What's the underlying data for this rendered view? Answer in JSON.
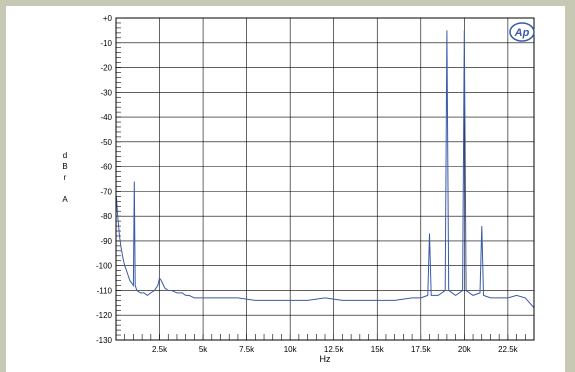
{
  "chart_data": {
    "type": "line",
    "title": "",
    "xlabel": "Hz",
    "ylabel_letters": [
      "d",
      "B",
      "r",
      "",
      "A"
    ],
    "logo_text": "Ap",
    "xlim": [
      0,
      24000
    ],
    "ylim": [
      -130,
      0
    ],
    "x_ticks": [
      2500,
      5000,
      7500,
      10000,
      12500,
      15000,
      17500,
      20000,
      22500
    ],
    "x_tick_labels": [
      "2.5k",
      "5k",
      "7.5k",
      "10k",
      "12.5k",
      "15k",
      "17.5k",
      "20k",
      "22.5k"
    ],
    "y_ticks": [
      0,
      -10,
      -20,
      -30,
      -40,
      -50,
      -60,
      -70,
      -80,
      -90,
      -100,
      -110,
      -120,
      -130
    ],
    "y_tick_labels": [
      "+0",
      "-10",
      "-20",
      "-30",
      "-40",
      "-50",
      "-60",
      "-70",
      "-80",
      "-90",
      "-100",
      "-110",
      "-120",
      "-130"
    ],
    "grid": true,
    "line_color": "#3a5aa8",
    "series": [
      {
        "name": "",
        "x": [
          20,
          100,
          200,
          300,
          400,
          500,
          600,
          700,
          800,
          900,
          1000,
          1050,
          1100,
          1200,
          1400,
          1600,
          1800,
          2000,
          2200,
          2400,
          2500,
          2600,
          2800,
          3000,
          3200,
          3500,
          3800,
          4000,
          4200,
          4500,
          5000,
          6000,
          7000,
          8000,
          9000,
          10000,
          11000,
          12000,
          13000,
          14000,
          15000,
          16000,
          17000,
          17500,
          17900,
          18000,
          18100,
          18500,
          18900,
          19000,
          19100,
          19500,
          19900,
          20000,
          20100,
          20500,
          20900,
          21000,
          21100,
          21500,
          22000,
          22500,
          23000,
          23500,
          24000
        ],
        "y": [
          -72,
          -80,
          -88,
          -93,
          -97,
          -100,
          -102,
          -104,
          -106,
          -107,
          -108,
          -66,
          -108,
          -110,
          -111,
          -111,
          -112,
          -111,
          -110,
          -108,
          -105,
          -106,
          -109,
          -110,
          -110,
          -111,
          -111,
          -112,
          -112,
          -113,
          -113,
          -113,
          -113,
          -114,
          -114,
          -114,
          -114,
          -113,
          -114,
          -114,
          -114,
          -114,
          -113,
          -113,
          -112,
          -87,
          -112,
          -112,
          -110,
          -5,
          -110,
          -112,
          -110,
          -5,
          -110,
          -112,
          -111,
          -84,
          -112,
          -113,
          -113,
          -113,
          -112,
          -113,
          -117
        ]
      }
    ]
  }
}
